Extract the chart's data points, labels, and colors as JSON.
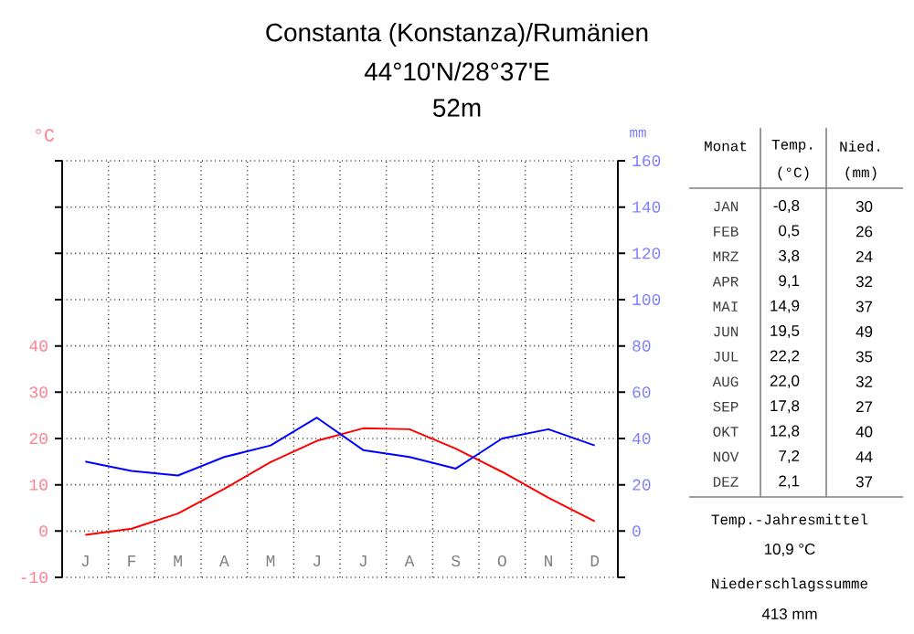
{
  "chart_data": {
    "type": "line",
    "title": "Constanta (Konstanza)/Rumänien",
    "subtitle": "44°10'N/28°37'E",
    "ylabel": "°C",
    "y2label": "mm",
    "categories": [
      "J",
      "F",
      "M",
      "A",
      "M",
      "J",
      "J",
      "A",
      "S",
      "O",
      "N",
      "D"
    ],
    "series": [
      {
        "color": "#ff0000",
        "values": [
          -0.8,
          0.5,
          3.8,
          9.1,
          14.9,
          19.5,
          22.2,
          22.0,
          17.8,
          12.8,
          7.2,
          2.1
        ]
      },
      {
        "color": "#0000ff",
        "axis": "y2",
        "values": [
          30,
          26,
          24,
          32,
          37,
          49,
          35,
          32,
          27,
          40,
          44,
          37
        ]
      }
    ],
    "ylim": [
      -10,
      80
    ],
    "yticks": [
      -10,
      0,
      10,
      20,
      30,
      40,
      {
        "value": 50,
        "label": null
      },
      {
        "value": 60,
        "label": null
      },
      {
        "value": 70,
        "label": null
      },
      {
        "value": 80,
        "label": null
      }
    ],
    "y2lim": [
      -20,
      160
    ],
    "y2ticks": [
      {
        "value": -20,
        "label": null
      },
      0,
      20,
      40,
      60,
      80,
      100,
      120,
      140,
      160
    ],
    "grid": true,
    "annotations": [
      "52m",
      "Monat",
      "Temp.",
      "(°C)",
      "Nied.",
      "(mm)",
      "JAN",
      "FEB",
      "MRZ",
      "APR",
      "MAI",
      "JUN",
      "JUL",
      "AUG",
      "SEP",
      "OKT",
      "NOV",
      "DEZ",
      "Temp.-Jahresmittel",
      "10,9 °C",
      "Niederschlagssumme",
      "413 mm",
      "-0,8",
      "0,5",
      "3,8",
      "9,1",
      "14,9",
      "19,5",
      "22,2",
      "22,0",
      "17,8",
      "12,8",
      "7,2",
      "2,1",
      "30",
      "26",
      "24",
      "32",
      "37",
      "49",
      "35",
      "32",
      "27",
      "40",
      "44",
      "37"
    ]
  }
}
